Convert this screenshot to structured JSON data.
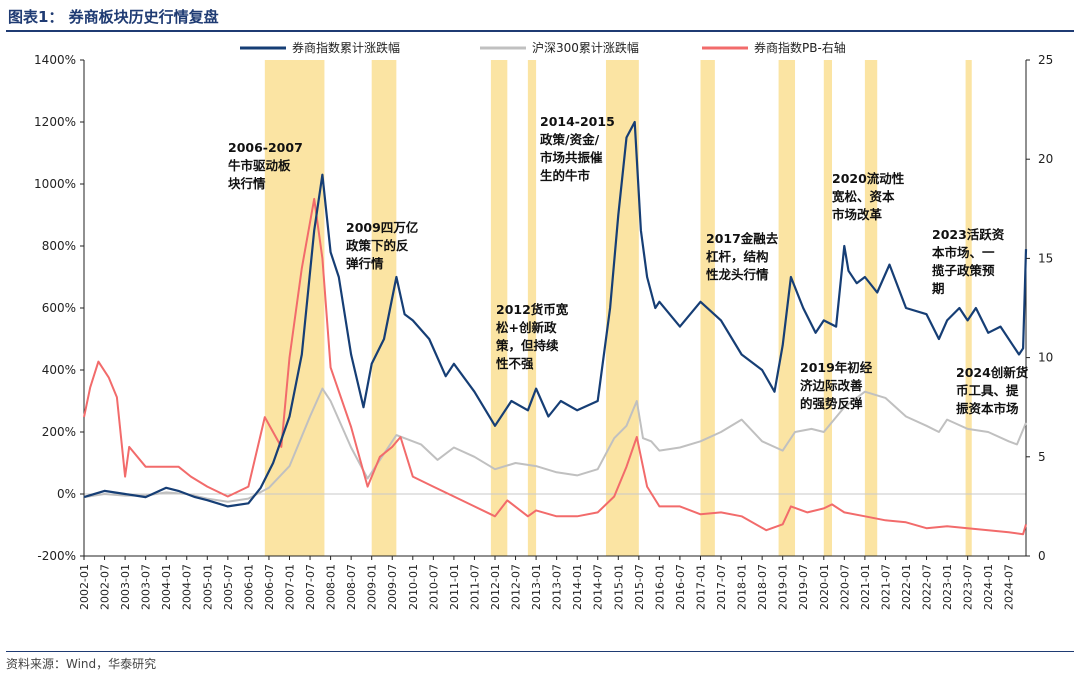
{
  "figure_title": "图表1：  券商板块历史行情复盘",
  "source": "资料来源：Wind，华泰研究",
  "chart_data": {
    "type": "line",
    "title": "券商板块历史行情复盘",
    "colors": {
      "broker": "#163e75",
      "hs300": "#c0c0c0",
      "pb": "#f26b6b",
      "band": "#fbe4a3"
    },
    "legend": [
      "券商指数累计涨跌幅",
      "沪深300累计涨跌幅",
      "券商指数PB-右轴"
    ],
    "y_left": {
      "min": -200,
      "max": 1400,
      "ticks": [
        "-200%",
        "0%",
        "200%",
        "400%",
        "600%",
        "800%",
        "1000%",
        "1200%",
        "1400%"
      ]
    },
    "y_right": {
      "min": 0,
      "max": 25,
      "ticks": [
        "0",
        "5",
        "10",
        "15",
        "20",
        "25"
      ]
    },
    "x_range": [
      2002.0,
      2024.92
    ],
    "x_ticks": [
      "2002-01",
      "2002-07",
      "2003-01",
      "2003-07",
      "2004-01",
      "2004-07",
      "2005-01",
      "2005-07",
      "2006-01",
      "2006-07",
      "2007-01",
      "2007-07",
      "2008-01",
      "2008-07",
      "2009-01",
      "2009-07",
      "2010-01",
      "2010-07",
      "2011-01",
      "2011-07",
      "2012-01",
      "2012-07",
      "2013-01",
      "2013-07",
      "2014-01",
      "2014-07",
      "2015-01",
      "2015-07",
      "2016-01",
      "2016-07",
      "2017-01",
      "2017-07",
      "2018-01",
      "2018-07",
      "2019-01",
      "2019-07",
      "2020-01",
      "2020-07",
      "2021-01",
      "2021-07",
      "2022-01",
      "2022-07",
      "2023-01",
      "2023-07",
      "2024-01",
      "2024-07"
    ],
    "bands": [
      [
        2006.4,
        2007.85
      ],
      [
        2009.0,
        2009.6
      ],
      [
        2011.9,
        2012.3
      ],
      [
        2012.8,
        2013.0
      ],
      [
        2014.7,
        2015.5
      ],
      [
        2017.0,
        2017.35
      ],
      [
        2018.9,
        2019.3
      ],
      [
        2020.0,
        2020.2
      ],
      [
        2021.0,
        2021.3
      ],
      [
        2023.45,
        2023.6
      ]
    ],
    "annotations": [
      {
        "lines": [
          "2006-2007",
          "牛市驱动板",
          "块行情"
        ]
      },
      {
        "lines": [
          "2009四万亿",
          "政策下的反",
          "弹行情"
        ]
      },
      {
        "lines": [
          "2012货币宽",
          "松+创新政",
          "策，但持续",
          "性不强"
        ]
      },
      {
        "lines": [
          "2014-2015",
          "政策/资金/",
          "市场共振催",
          "生的牛市"
        ]
      },
      {
        "lines": [
          "2017金融去",
          "杠杆，结构",
          "性龙头行情"
        ]
      },
      {
        "lines": [
          "2019年初经",
          "济边际改善",
          "的强势反弹"
        ]
      },
      {
        "lines": [
          "2020流动性",
          "宽松、资本",
          "市场改革"
        ]
      },
      {
        "lines": [
          "2023活跃资",
          "本市场、一",
          "揽子政策预",
          "期"
        ]
      },
      {
        "lines": [
          "2024创新货",
          "币工具、提",
          "振资本市场"
        ]
      }
    ],
    "series": [
      {
        "name": "券商指数累计涨跌幅",
        "axis": "left",
        "x": [
          2002.0,
          2002.5,
          2003.0,
          2003.5,
          2004.0,
          2004.3,
          2004.7,
          2005.0,
          2005.5,
          2006.0,
          2006.3,
          2006.6,
          2007.0,
          2007.3,
          2007.6,
          2007.8,
          2008.0,
          2008.2,
          2008.5,
          2008.8,
          2009.0,
          2009.3,
          2009.6,
          2009.8,
          2010.0,
          2010.4,
          2010.8,
          2011.0,
          2011.5,
          2012.0,
          2012.4,
          2012.8,
          2013.0,
          2013.3,
          2013.6,
          2014.0,
          2014.5,
          2014.8,
          2015.0,
          2015.2,
          2015.4,
          2015.55,
          2015.7,
          2015.9,
          2016.0,
          2016.5,
          2017.0,
          2017.5,
          2018.0,
          2018.5,
          2018.8,
          2019.0,
          2019.2,
          2019.5,
          2019.8,
          2020.0,
          2020.3,
          2020.5,
          2020.6,
          2020.8,
          2021.0,
          2021.3,
          2021.6,
          2022.0,
          2022.5,
          2022.8,
          2023.0,
          2023.3,
          2023.5,
          2023.7,
          2024.0,
          2024.3,
          2024.6,
          2024.75,
          2024.85,
          2024.92
        ],
        "y": [
          -10,
          10,
          0,
          -10,
          20,
          10,
          -10,
          -20,
          -40,
          -30,
          20,
          100,
          250,
          450,
          850,
          1030,
          780,
          700,
          450,
          280,
          420,
          500,
          700,
          580,
          560,
          500,
          380,
          420,
          330,
          220,
          300,
          270,
          340,
          250,
          300,
          270,
          300,
          600,
          900,
          1150,
          1200,
          850,
          700,
          600,
          620,
          540,
          620,
          560,
          450,
          400,
          330,
          480,
          700,
          600,
          520,
          560,
          540,
          800,
          720,
          680,
          700,
          650,
          740,
          600,
          580,
          500,
          560,
          600,
          560,
          600,
          520,
          540,
          480,
          450,
          470,
          790
        ]
      },
      {
        "name": "沪深300累计涨跌幅",
        "axis": "left",
        "x": [
          2002.0,
          2002.5,
          2003.0,
          2003.5,
          2004.0,
          2004.5,
          2005.0,
          2005.5,
          2006.0,
          2006.5,
          2007.0,
          2007.5,
          2007.8,
          2008.0,
          2008.5,
          2008.9,
          2009.2,
          2009.6,
          2009.8,
          2010.2,
          2010.6,
          2011.0,
          2011.5,
          2012.0,
          2012.5,
          2013.0,
          2013.5,
          2014.0,
          2014.5,
          2014.9,
          2015.2,
          2015.45,
          2015.6,
          2015.8,
          2016.0,
          2016.5,
          2017.0,
          2017.5,
          2018.0,
          2018.5,
          2019.0,
          2019.3,
          2019.7,
          2020.0,
          2020.5,
          2021.0,
          2021.5,
          2022.0,
          2022.5,
          2022.8,
          2023.0,
          2023.5,
          2024.0,
          2024.5,
          2024.7,
          2024.92
        ],
        "y": [
          -10,
          0,
          -5,
          -5,
          5,
          0,
          -15,
          -25,
          -15,
          20,
          90,
          250,
          340,
          300,
          150,
          50,
          110,
          190,
          180,
          160,
          110,
          150,
          120,
          80,
          100,
          90,
          70,
          60,
          80,
          180,
          220,
          300,
          180,
          170,
          140,
          150,
          170,
          200,
          240,
          170,
          140,
          200,
          210,
          200,
          280,
          330,
          310,
          250,
          220,
          200,
          240,
          210,
          200,
          170,
          160,
          230
        ]
      },
      {
        "name": "券商指数PB-右轴",
        "axis": "right",
        "x": [
          2002.0,
          2002.15,
          2002.35,
          2002.6,
          2002.8,
          2003.0,
          2003.1,
          2003.5,
          2004.0,
          2004.3,
          2004.6,
          2005.0,
          2005.5,
          2006.0,
          2006.4,
          2006.8,
          2007.0,
          2007.3,
          2007.6,
          2007.8,
          2008.0,
          2008.5,
          2008.9,
          2009.2,
          2009.5,
          2009.7,
          2010.0,
          2010.5,
          2011.0,
          2011.5,
          2012.0,
          2012.3,
          2012.8,
          2013.0,
          2013.5,
          2014.0,
          2014.5,
          2014.9,
          2015.2,
          2015.45,
          2015.7,
          2016.0,
          2016.5,
          2017.0,
          2017.5,
          2018.0,
          2018.6,
          2019.0,
          2019.2,
          2019.6,
          2020.0,
          2020.2,
          2020.5,
          2021.0,
          2021.5,
          2022.0,
          2022.5,
          2023.0,
          2023.5,
          2024.0,
          2024.5,
          2024.85,
          2024.92
        ],
        "y": [
          7,
          8.5,
          9.8,
          9,
          8,
          4,
          5.5,
          4.5,
          4.5,
          4.5,
          4,
          3.5,
          3,
          3.5,
          7,
          5.5,
          10,
          14.5,
          18,
          15,
          9.5,
          6.5,
          3.5,
          5,
          5.5,
          6,
          4,
          3.5,
          3,
          2.5,
          2,
          2.8,
          2,
          2.3,
          2,
          2,
          2.2,
          3,
          4.5,
          6,
          3.5,
          2.5,
          2.5,
          2.1,
          2.2,
          2,
          1.3,
          1.6,
          2.5,
          2.2,
          2.4,
          2.6,
          2.2,
          2,
          1.8,
          1.7,
          1.4,
          1.5,
          1.4,
          1.3,
          1.2,
          1.1,
          1.6
        ]
      }
    ]
  }
}
